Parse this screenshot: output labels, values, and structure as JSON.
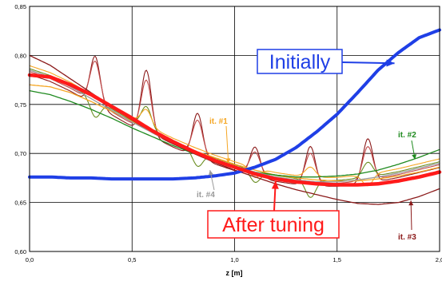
{
  "chart_data": {
    "type": "line",
    "xlabel": "z [m]",
    "ylabel": "",
    "xlim": [
      0.0,
      2.0
    ],
    "ylim": [
      0.6,
      0.85
    ],
    "x_ticks": [
      0.0,
      0.5,
      1.0,
      1.5,
      2.0
    ],
    "x_tick_labels": [
      "0,0",
      "0,5",
      "1,0",
      "1,5",
      "2,0"
    ],
    "y_ticks": [
      0.6,
      0.65,
      0.7,
      0.75,
      0.8,
      0.85
    ],
    "y_tick_labels": [
      "0,60",
      "0,65",
      "0,70",
      "0,75",
      "0,80",
      "0,85"
    ],
    "grid": true,
    "series": [
      {
        "key": "initial",
        "color": "#1f3fe6",
        "x": [
          0,
          0.1,
          0.2,
          0.3,
          0.4,
          0.5,
          0.6,
          0.7,
          0.8,
          0.9,
          1.0,
          1.1,
          1.2,
          1.3,
          1.4,
          1.5,
          1.6,
          1.7,
          1.8,
          1.9,
          2.0
        ],
        "y": [
          0.676,
          0.676,
          0.675,
          0.675,
          0.674,
          0.674,
          0.674,
          0.674,
          0.675,
          0.677,
          0.68,
          0.686,
          0.694,
          0.706,
          0.722,
          0.74,
          0.762,
          0.785,
          0.803,
          0.818,
          0.826
        ]
      },
      {
        "key": "after-tuning",
        "color": "#ff1a1a",
        "x": [
          0,
          0.1,
          0.2,
          0.3,
          0.4,
          0.5,
          0.6,
          0.7,
          0.8,
          0.9,
          1.0,
          1.1,
          1.2,
          1.3,
          1.4,
          1.5,
          1.6,
          1.7,
          1.8,
          1.9,
          2.0
        ],
        "y": [
          0.78,
          0.778,
          0.77,
          0.76,
          0.748,
          0.736,
          0.723,
          0.712,
          0.702,
          0.693,
          0.686,
          0.679,
          0.674,
          0.671,
          0.669,
          0.668,
          0.668,
          0.669,
          0.672,
          0.676,
          0.681
        ]
      },
      {
        "key": "it1",
        "color": "#f5a623",
        "x": [
          0,
          0.1,
          0.2,
          0.3,
          0.4,
          0.5,
          0.6,
          0.7,
          0.8,
          0.9,
          1.0,
          1.1,
          1.2,
          1.3,
          1.4,
          1.5,
          1.6,
          1.7,
          1.8,
          1.9,
          2.0
        ],
        "y": [
          0.77,
          0.768,
          0.762,
          0.753,
          0.743,
          0.733,
          0.722,
          0.712,
          0.703,
          0.696,
          0.689,
          0.683,
          0.678,
          0.675,
          0.673,
          0.672,
          0.672,
          0.674,
          0.677,
          0.681,
          0.686
        ]
      },
      {
        "key": "it2",
        "color": "#1f8a1f",
        "x": [
          0,
          0.1,
          0.2,
          0.3,
          0.4,
          0.5,
          0.6,
          0.7,
          0.8,
          0.9,
          1.0,
          1.1,
          1.2,
          1.3,
          1.4,
          1.5,
          1.6,
          1.7,
          1.8,
          1.9,
          2.0
        ],
        "y": [
          0.764,
          0.76,
          0.753,
          0.745,
          0.736,
          0.726,
          0.717,
          0.708,
          0.7,
          0.692,
          0.686,
          0.681,
          0.678,
          0.676,
          0.676,
          0.677,
          0.679,
          0.683,
          0.689,
          0.696,
          0.704
        ]
      },
      {
        "key": "it3",
        "color": "#8b1a1a",
        "x": [
          0,
          0.1,
          0.2,
          0.3,
          0.4,
          0.5,
          0.6,
          0.7,
          0.8,
          0.9,
          1.0,
          1.1,
          1.2,
          1.3,
          1.4,
          1.5,
          1.6,
          1.7,
          1.8,
          1.9,
          2.0
        ],
        "y": [
          0.8,
          0.79,
          0.776,
          0.762,
          0.748,
          0.734,
          0.721,
          0.71,
          0.7,
          0.691,
          0.683,
          0.676,
          0.669,
          0.663,
          0.658,
          0.653,
          0.649,
          0.648,
          0.65,
          0.656,
          0.664
        ]
      },
      {
        "key": "it4",
        "color": "#9a9a9a",
        "x": [
          0,
          0.1,
          0.2,
          0.3,
          0.4,
          0.5,
          0.6,
          0.7,
          0.8,
          0.9,
          1.0,
          1.1,
          1.2,
          1.3,
          1.4,
          1.5,
          1.6,
          1.7,
          1.8,
          1.9,
          2.0
        ],
        "y": [
          0.785,
          0.778,
          0.768,
          0.756,
          0.744,
          0.732,
          0.721,
          0.711,
          0.702,
          0.694,
          0.687,
          0.681,
          0.676,
          0.673,
          0.671,
          0.671,
          0.673,
          0.676,
          0.68,
          0.685,
          0.69
        ]
      }
    ],
    "oscillations": [
      {
        "color": "#8b1a1a",
        "centers": [
          0.32,
          0.57,
          0.82,
          1.1,
          1.37,
          1.65
        ],
        "amps": [
          0.05,
          0.065,
          0.045,
          0.03,
          0.04,
          0.045
        ]
      },
      {
        "color": "#c04848",
        "centers": [
          0.32,
          0.57,
          0.82,
          1.1,
          1.37,
          1.65
        ],
        "amps": [
          0.042,
          0.052,
          0.035,
          0.022,
          0.03,
          0.034
        ]
      },
      {
        "color": "#6b8e23",
        "centers": [
          0.32,
          0.57,
          0.82,
          1.1,
          1.37,
          1.65
        ],
        "amps": [
          -0.018,
          0.022,
          -0.015,
          -0.012,
          -0.018,
          0.015
        ]
      },
      {
        "color": "#f5a623",
        "centers": [
          0.57,
          1.1,
          1.37,
          1.65
        ],
        "amps": [
          0.016,
          -0.01,
          0.01,
          -0.012
        ]
      }
    ],
    "annotations": [
      {
        "key": "initially",
        "text": "Initially",
        "color": "#1f3fe6",
        "size": "large",
        "boxed": true,
        "target": [
          1.78,
          0.792
        ]
      },
      {
        "key": "after",
        "text": "After tuning",
        "color": "#ff1a1a",
        "size": "large",
        "boxed": true,
        "target": [
          1.2,
          0.672
        ]
      },
      {
        "key": "it1",
        "text": "it. #1",
        "color": "#f5a623",
        "size": "small",
        "boxed": false,
        "target": [
          0.97,
          0.69
        ]
      },
      {
        "key": "it2",
        "text": "it. #2",
        "color": "#1f8a1f",
        "size": "small",
        "boxed": false,
        "target": [
          1.88,
          0.694
        ]
      },
      {
        "key": "it3",
        "text": "it. #3",
        "color": "#8b1a1a",
        "size": "small",
        "boxed": false,
        "target": [
          1.86,
          0.652
        ]
      },
      {
        "key": "it4",
        "text": "it. #4",
        "color": "#9a9a9a",
        "size": "small",
        "boxed": false,
        "target": [
          0.88,
          0.683
        ]
      }
    ]
  }
}
